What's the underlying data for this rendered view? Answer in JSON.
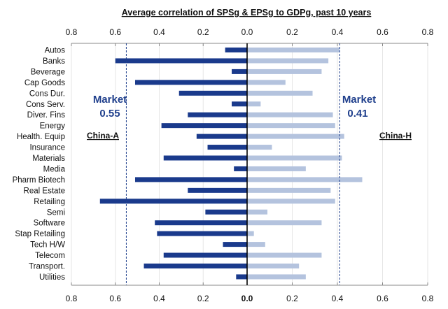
{
  "chart_data": {
    "type": "bar",
    "orientation": "horizontal-butterfly",
    "title": "Average correlation of SPSg & EPSg to GDPg, past 10 years",
    "xlabel": "",
    "ylabel": "",
    "grid": true,
    "x_ticks": [
      "0.8",
      "0.6",
      "0.4",
      "0.2",
      "0.0",
      "0.2",
      "0.4",
      "0.6",
      "0.8"
    ],
    "left_xlim": [
      0,
      0.8
    ],
    "right_xlim": [
      0,
      0.8
    ],
    "categories": [
      "Autos",
      "Banks",
      "Beverage",
      "Cap Goods",
      "Cons Dur.",
      "Cons Serv.",
      "Diver. Fins",
      "Energy",
      "Health. Equip",
      "Insurance",
      "Materials",
      "Media",
      "Pharm Biotech",
      "Real Estate",
      "Retailing",
      "Semi",
      "Software",
      "Stap Retailing",
      "Tech H/W",
      "Telecom",
      "Transport.",
      "Utilities"
    ],
    "series": [
      {
        "name": "China-A",
        "side": "left",
        "color": "#1a3a8c",
        "values": [
          0.1,
          0.6,
          0.07,
          0.51,
          0.31,
          0.07,
          0.27,
          0.39,
          0.23,
          0.18,
          0.38,
          0.06,
          0.51,
          0.27,
          0.67,
          0.19,
          0.42,
          0.41,
          0.11,
          0.38,
          0.47,
          0.05
        ],
        "market_line": {
          "value": 0.55,
          "label_line1": "Market",
          "label_line2": "0.55"
        }
      },
      {
        "name": "China-H",
        "side": "right",
        "color": "#b4c3de",
        "values": [
          0.41,
          0.36,
          0.33,
          0.17,
          0.29,
          0.06,
          0.38,
          0.39,
          0.43,
          0.11,
          0.42,
          0.26,
          0.51,
          0.37,
          0.39,
          0.09,
          0.33,
          0.03,
          0.08,
          0.33,
          0.23,
          0.26
        ],
        "market_line": {
          "value": 0.41,
          "label_line1": "Market",
          "label_line2": "0.41"
        }
      }
    ],
    "series_labels": {
      "left": "China-A",
      "right": "China-H"
    },
    "colors": {
      "market_line": "#1f3f8c",
      "axis": "#888888",
      "center_axis": "#000000",
      "grid": "#e6e6e6",
      "market_text": "#1f3f8c"
    }
  }
}
